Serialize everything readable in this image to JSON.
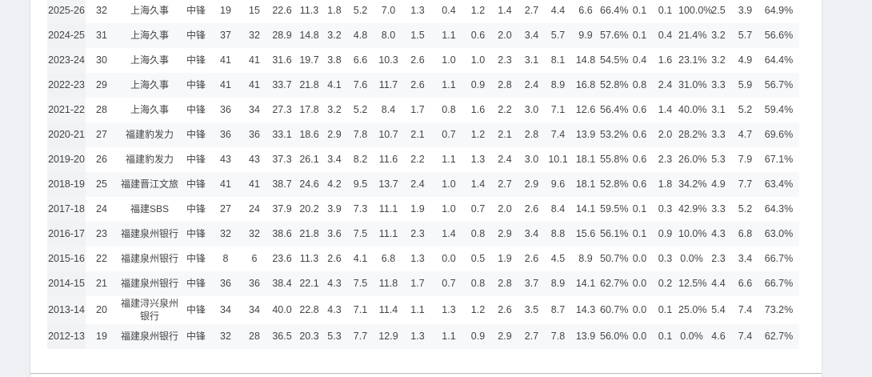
{
  "page": {
    "background_color": "#eef0f4",
    "card_color": "#ffffff",
    "divider_color": "#b7b9bc"
  },
  "stats_table": {
    "stripe_color": "#f7f8fa",
    "season_column_color": "#f3f4f6",
    "text_color": "#434447",
    "rows": [
      {
        "season": "2025-26",
        "age": "32",
        "team": "上海久事",
        "position": "中锋",
        "stats": [
          "19",
          "15",
          "22.6",
          "11.3",
          "1.8",
          "5.2",
          "7.0",
          "1.3",
          "0.4",
          "1.2",
          "1.4",
          "2.7",
          "4.4",
          "6.6",
          "66.4%",
          "0.1",
          "0.1",
          "100.0%",
          "2.5",
          "3.9",
          "64.9%"
        ]
      },
      {
        "season": "2024-25",
        "age": "31",
        "team": "上海久事",
        "position": "中锋",
        "stats": [
          "37",
          "32",
          "28.9",
          "14.8",
          "3.2",
          "4.8",
          "8.0",
          "1.5",
          "1.1",
          "0.6",
          "2.0",
          "3.4",
          "5.7",
          "9.9",
          "57.6%",
          "0.1",
          "0.4",
          "21.4%",
          "3.2",
          "5.7",
          "56.6%"
        ]
      },
      {
        "season": "2023-24",
        "age": "30",
        "team": "上海久事",
        "position": "中锋",
        "stats": [
          "41",
          "41",
          "31.6",
          "19.7",
          "3.8",
          "6.6",
          "10.3",
          "2.6",
          "1.0",
          "1.0",
          "2.3",
          "3.1",
          "8.1",
          "14.8",
          "54.5%",
          "0.4",
          "1.6",
          "23.1%",
          "3.2",
          "4.9",
          "64.4%"
        ]
      },
      {
        "season": "2022-23",
        "age": "29",
        "team": "上海久事",
        "position": "中锋",
        "stats": [
          "41",
          "41",
          "33.7",
          "21.8",
          "4.1",
          "7.6",
          "11.7",
          "2.6",
          "1.1",
          "0.9",
          "2.8",
          "2.4",
          "8.9",
          "16.8",
          "52.8%",
          "0.8",
          "2.4",
          "31.0%",
          "3.3",
          "5.9",
          "56.7%"
        ]
      },
      {
        "season": "2021-22",
        "age": "28",
        "team": "上海久事",
        "position": "中锋",
        "stats": [
          "36",
          "34",
          "27.3",
          "17.8",
          "3.2",
          "5.2",
          "8.4",
          "1.7",
          "0.8",
          "1.6",
          "2.2",
          "3.0",
          "7.1",
          "12.6",
          "56.4%",
          "0.6",
          "1.4",
          "40.0%",
          "3.1",
          "5.2",
          "59.4%"
        ]
      },
      {
        "season": "2020-21",
        "age": "27",
        "team": "福建豹发力",
        "position": "中锋",
        "stats": [
          "36",
          "36",
          "33.1",
          "18.6",
          "2.9",
          "7.8",
          "10.7",
          "2.1",
          "0.7",
          "1.2",
          "2.1",
          "2.8",
          "7.4",
          "13.9",
          "53.2%",
          "0.6",
          "2.0",
          "28.2%",
          "3.3",
          "4.7",
          "69.6%"
        ]
      },
      {
        "season": "2019-20",
        "age": "26",
        "team": "福建豹发力",
        "position": "中锋",
        "stats": [
          "43",
          "43",
          "37.3",
          "26.1",
          "3.4",
          "8.2",
          "11.6",
          "2.2",
          "1.1",
          "1.3",
          "2.4",
          "3.0",
          "10.1",
          "18.1",
          "55.8%",
          "0.6",
          "2.3",
          "26.0%",
          "5.3",
          "7.9",
          "67.1%"
        ]
      },
      {
        "season": "2018-19",
        "age": "25",
        "team": "福建晋江文旅",
        "position": "中锋",
        "stats": [
          "41",
          "41",
          "38.7",
          "24.6",
          "4.2",
          "9.5",
          "13.7",
          "2.4",
          "1.0",
          "1.4",
          "2.7",
          "2.9",
          "9.6",
          "18.1",
          "52.8%",
          "0.6",
          "1.8",
          "34.2%",
          "4.9",
          "7.7",
          "63.4%"
        ]
      },
      {
        "season": "2017-18",
        "age": "24",
        "team": "福建SBS",
        "position": "中锋",
        "stats": [
          "27",
          "24",
          "37.9",
          "20.2",
          "3.9",
          "7.3",
          "11.1",
          "1.9",
          "1.0",
          "0.7",
          "2.0",
          "2.6",
          "8.4",
          "14.1",
          "59.5%",
          "0.1",
          "0.3",
          "42.9%",
          "3.3",
          "5.2",
          "64.3%"
        ]
      },
      {
        "season": "2016-17",
        "age": "23",
        "team": "福建泉州银行",
        "position": "中锋",
        "stats": [
          "32",
          "32",
          "38.6",
          "21.8",
          "3.6",
          "7.5",
          "11.1",
          "2.3",
          "1.4",
          "0.8",
          "2.9",
          "3.4",
          "8.8",
          "15.6",
          "56.1%",
          "0.1",
          "0.9",
          "10.0%",
          "4.3",
          "6.8",
          "63.0%"
        ]
      },
      {
        "season": "2015-16",
        "age": "22",
        "team": "福建泉州银行",
        "position": "中锋",
        "stats": [
          "8",
          "6",
          "23.6",
          "11.3",
          "2.6",
          "4.1",
          "6.8",
          "1.3",
          "0.0",
          "0.5",
          "1.9",
          "2.6",
          "4.5",
          "8.9",
          "50.7%",
          "0.0",
          "0.3",
          "0.0%",
          "2.3",
          "3.4",
          "66.7%"
        ]
      },
      {
        "season": "2014-15",
        "age": "21",
        "team": "福建泉州银行",
        "position": "中锋",
        "stats": [
          "36",
          "36",
          "38.4",
          "22.1",
          "4.3",
          "7.5",
          "11.8",
          "1.7",
          "0.7",
          "0.8",
          "2.8",
          "3.7",
          "8.9",
          "14.1",
          "62.7%",
          "0.0",
          "0.2",
          "12.5%",
          "4.4",
          "6.6",
          "66.7%"
        ]
      },
      {
        "season": "2013-14",
        "age": "20",
        "team": "福建浔兴泉州银行",
        "position": "中锋",
        "stats": [
          "34",
          "34",
          "40.0",
          "22.8",
          "4.3",
          "7.1",
          "11.4",
          "1.1",
          "1.3",
          "1.2",
          "2.6",
          "3.5",
          "8.7",
          "14.3",
          "60.7%",
          "0.0",
          "0.1",
          "25.0%",
          "5.4",
          "7.4",
          "73.2%"
        ]
      },
      {
        "season": "2012-13",
        "age": "19",
        "team": "福建泉州银行",
        "position": "中锋",
        "stats": [
          "32",
          "28",
          "36.5",
          "20.3",
          "5.3",
          "7.7",
          "12.9",
          "1.3",
          "1.1",
          "0.9",
          "2.9",
          "2.7",
          "7.8",
          "13.9",
          "56.0%",
          "0.0",
          "0.1",
          "0.0%",
          "4.6",
          "7.4",
          "62.7%"
        ]
      }
    ]
  }
}
